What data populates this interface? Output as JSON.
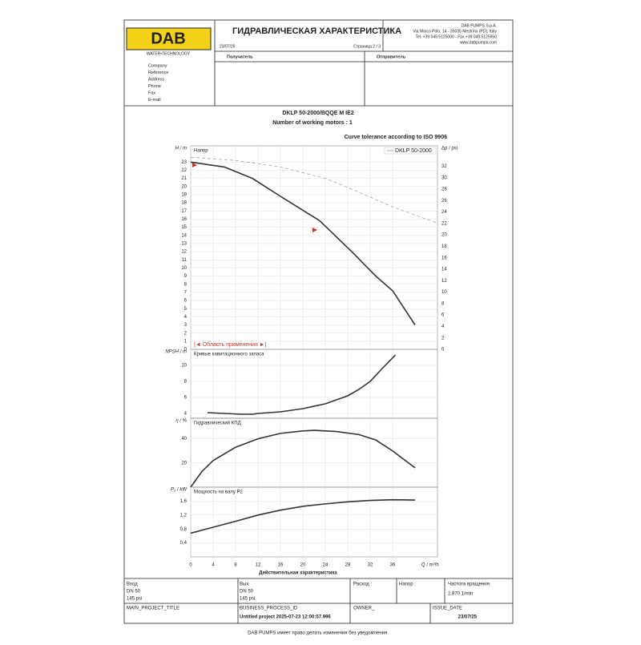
{
  "header": {
    "logo": "DAB",
    "logo_sub": "WATER•TECHNOLOGY",
    "title": "ГИДРАВЛИЧЕСКАЯ ХАРАКТЕРИСТИКА",
    "date": "23/07/25",
    "page": "Страница 2 / 3",
    "company": [
      "DAB PUMPS S.p.A.",
      "Via Marco Polo, 14 - 35035 Mestrino (PD), Italy",
      "Tel. +39 049.5125000 - Fax +39 049.5125950",
      "www.dabpumps.com"
    ],
    "recipient": "Получатель",
    "sender": "Отправитель",
    "fields": [
      "Company",
      "Reference",
      "Address",
      "Phone",
      "Fax",
      "E-mail"
    ]
  },
  "product": {
    "model": "DKLP 50-2000/BQQE M IE2",
    "motors": "Number of working motors :    1",
    "tolerance": "Curve tolerance according to ISO 9906"
  },
  "chart_data": [
    {
      "type": "line",
      "label": "Напор",
      "ylabel": "H / m",
      "y2label": "Δp / psi",
      "note": "|◄ Область применения ►|",
      "note_color": "#c0392b",
      "xlim": [
        0,
        44
      ],
      "ylim": [
        0,
        25
      ],
      "yticks": [
        0,
        1,
        2,
        3,
        4,
        5,
        6,
        7,
        8,
        9,
        10,
        11,
        12,
        13,
        14,
        15,
        16,
        17,
        18,
        19,
        20,
        21,
        22,
        23
      ],
      "y2lim": [
        0,
        35.56
      ],
      "y2ticks": [
        0,
        2,
        4,
        6,
        8,
        10,
        12,
        14,
        16,
        18,
        20,
        22,
        24,
        26,
        28,
        30,
        32
      ],
      "grid": true,
      "legend": "upper right",
      "series": [
        {
          "color": "#333333",
          "x": [
            0,
            2,
            6,
            11,
            16,
            23,
            29,
            33,
            36,
            40
          ],
          "values": [
            23,
            22.8,
            22.4,
            21,
            18.8,
            15.8,
            11.8,
            9,
            7.2,
            3
          ]
        },
        {
          "name": "DKLP 50-2000",
          "color": "#9a9a9a",
          "dash": true,
          "x": [
            0,
            8,
            16,
            24,
            30,
            36,
            44
          ],
          "values": [
            23.6,
            23.2,
            22.4,
            21,
            19.3,
            17.5,
            15.5
          ]
        }
      ]
    },
    {
      "type": "line",
      "label": "Кривые кавитационного запаса",
      "ylabel": "NPSH / m",
      "xlim": [
        0,
        44
      ],
      "ylim": [
        3.4,
        12
      ],
      "yticks": [
        4,
        6,
        8,
        10
      ],
      "grid": true,
      "series": [
        {
          "color": "#333333",
          "x": [
            3,
            6,
            9,
            11,
            12,
            16,
            20,
            24,
            28,
            30,
            32,
            34,
            36.5
          ],
          "values": [
            4.1,
            4,
            3.9,
            3.9,
            4,
            4.2,
            4.6,
            5.2,
            6.2,
            7,
            8,
            9.5,
            11.3
          ]
        }
      ]
    },
    {
      "type": "line",
      "label": "Гидравлический КПД",
      "ylabel": "η / %",
      "xlim": [
        0,
        44
      ],
      "ylim": [
        0,
        57
      ],
      "yticks": [
        20,
        40
      ],
      "grid": true,
      "series": [
        {
          "color": "#333333",
          "x": [
            0,
            2,
            4,
            8,
            12,
            16,
            20,
            22,
            26,
            30,
            33,
            36,
            40
          ],
          "values": [
            0,
            13,
            22,
            33,
            40,
            44.5,
            46.5,
            47,
            46,
            43.5,
            39,
            30,
            16
          ]
        }
      ]
    },
    {
      "type": "line",
      "label": "Мощность на валу P2",
      "ylabel": "P₂ / kW",
      "xlabel": "Q / m³/h",
      "caption": "Действительная характеристика",
      "xlim": [
        0,
        44
      ],
      "xticks": [
        0,
        4,
        8,
        12,
        16,
        20,
        24,
        28,
        32,
        36
      ],
      "ylim": [
        0,
        2
      ],
      "yticks": [
        {
          "value": 0.4,
          "label": "0,4"
        },
        {
          "value": 0.8,
          "label": "0,8"
        },
        {
          "value": 1.2,
          "label": "1,2"
        },
        {
          "value": 1.6,
          "label": "1,6"
        }
      ],
      "grid": true,
      "series": [
        {
          "color": "#333333",
          "x": [
            0,
            4,
            8,
            12,
            16,
            20,
            24,
            28,
            32,
            36,
            40
          ],
          "values": [
            0.68,
            0.85,
            1.02,
            1.2,
            1.34,
            1.45,
            1.52,
            1.58,
            1.62,
            1.64,
            1.63
          ]
        }
      ]
    }
  ],
  "footer_table": {
    "inlet": [
      "Вход",
      "DN 50",
      "145 psi"
    ],
    "outlet": [
      "Вых",
      "DN 50",
      "145 psi"
    ],
    "flow": "Расход :",
    "head": "Напор :",
    "speed": [
      "Частота вращения",
      "2.870 1/min"
    ],
    "project": "MAIN_PROJECT_TITLE",
    "process": [
      "BUSINESS_PROCESS_ID",
      "Untitled project 2025-07-23 12:00:57.996"
    ],
    "owner": "OWNER_",
    "issue": [
      "ISSUE_DATE",
      "23/07/25"
    ]
  },
  "footer": "DAB PUMPS имеет право делать изменения без уведомления."
}
